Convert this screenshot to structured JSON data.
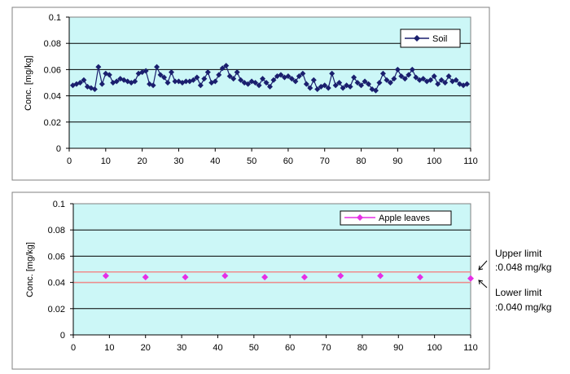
{
  "chart_data": [
    {
      "type": "line",
      "ylabel": "Conc. [mg/kg]",
      "xlim": [
        0,
        110
      ],
      "ylim": [
        0,
        0.1
      ],
      "xticks": [
        0,
        10,
        20,
        30,
        40,
        50,
        60,
        70,
        80,
        90,
        100,
        110
      ],
      "yticks": [
        0,
        0.02,
        0.04,
        0.06,
        0.08,
        0.1
      ],
      "ytick_labels": [
        "0",
        "0.02",
        "0.04",
        "0.06",
        "0.08",
        "0.1"
      ],
      "grid": "horizontal",
      "legend": "top-right",
      "series": [
        {
          "name": "Soil",
          "color": "#1a1f6e",
          "marker": "diamond",
          "x": [
            1,
            2,
            3,
            4,
            5,
            6,
            7,
            8,
            9,
            10,
            11,
            12,
            13,
            14,
            15,
            16,
            17,
            18,
            19,
            20,
            21,
            22,
            23,
            24,
            25,
            26,
            27,
            28,
            29,
            30,
            31,
            32,
            33,
            34,
            35,
            36,
            37,
            38,
            39,
            40,
            41,
            42,
            43,
            44,
            45,
            46,
            47,
            48,
            49,
            50,
            51,
            52,
            53,
            54,
            55,
            56,
            57,
            58,
            59,
            60,
            61,
            62,
            63,
            64,
            65,
            66,
            67,
            68,
            69,
            70,
            71,
            72,
            73,
            74,
            75,
            76,
            77,
            78,
            79,
            80,
            81,
            82,
            83,
            84,
            85,
            86,
            87,
            88,
            89,
            90,
            91,
            92,
            93,
            94,
            95,
            96,
            97,
            98,
            99,
            100,
            101,
            102,
            103,
            104,
            105,
            106,
            107,
            108,
            109
          ],
          "y": [
            0.048,
            0.049,
            0.05,
            0.052,
            0.047,
            0.046,
            0.045,
            0.062,
            0.049,
            0.057,
            0.056,
            0.05,
            0.051,
            0.053,
            0.052,
            0.051,
            0.05,
            0.051,
            0.057,
            0.058,
            0.059,
            0.049,
            0.048,
            0.062,
            0.056,
            0.054,
            0.05,
            0.058,
            0.051,
            0.051,
            0.05,
            0.051,
            0.051,
            0.052,
            0.054,
            0.048,
            0.053,
            0.058,
            0.05,
            0.051,
            0.056,
            0.061,
            0.063,
            0.055,
            0.053,
            0.058,
            0.052,
            0.05,
            0.049,
            0.051,
            0.05,
            0.048,
            0.053,
            0.05,
            0.047,
            0.052,
            0.055,
            0.056,
            0.054,
            0.055,
            0.053,
            0.051,
            0.055,
            0.057,
            0.049,
            0.046,
            0.052,
            0.045,
            0.047,
            0.048,
            0.046,
            0.057,
            0.048,
            0.05,
            0.046,
            0.048,
            0.047,
            0.054,
            0.05,
            0.048,
            0.051,
            0.049,
            0.045,
            0.044,
            0.05,
            0.057,
            0.052,
            0.05,
            0.053,
            0.06,
            0.055,
            0.053,
            0.056,
            0.06,
            0.054,
            0.052,
            0.053,
            0.051,
            0.052,
            0.055,
            0.049,
            0.052,
            0.05,
            0.055,
            0.051,
            0.052,
            0.049,
            0.048,
            0.049
          ]
        }
      ]
    },
    {
      "type": "scatter",
      "ylabel": "Conc. [mg/kg]",
      "xlim": [
        0,
        110
      ],
      "ylim": [
        0,
        0.1
      ],
      "xticks": [
        0,
        10,
        20,
        30,
        40,
        50,
        60,
        70,
        80,
        90,
        100,
        110
      ],
      "yticks": [
        0,
        0.02,
        0.04,
        0.06,
        0.08,
        0.1
      ],
      "ytick_labels": [
        "0",
        "0.02",
        "0.04",
        "0.06",
        "0.08",
        "0.1"
      ],
      "grid": "horizontal",
      "legend": "top-right",
      "series": [
        {
          "name": "Apple leaves",
          "color": "#e62ee6",
          "marker": "diamond",
          "x": [
            9,
            20,
            31,
            42,
            53,
            64,
            74,
            85,
            96,
            110
          ],
          "y": [
            0.045,
            0.044,
            0.044,
            0.045,
            0.044,
            0.044,
            0.045,
            0.045,
            0.044,
            0.043
          ]
        }
      ],
      "reference_lines": [
        {
          "y": 0.048,
          "color": "#f08c8c",
          "label_line1": "Upper limit",
          "label_line2": ":0.048 mg/kg"
        },
        {
          "y": 0.04,
          "color": "#f08c8c",
          "label_line1": "Lower limit",
          "label_line2": ":0.040 mg/kg"
        }
      ]
    }
  ],
  "colors": {
    "plot_bg": "#ccf7f7",
    "grid": "#000000",
    "frame": "#808080"
  }
}
